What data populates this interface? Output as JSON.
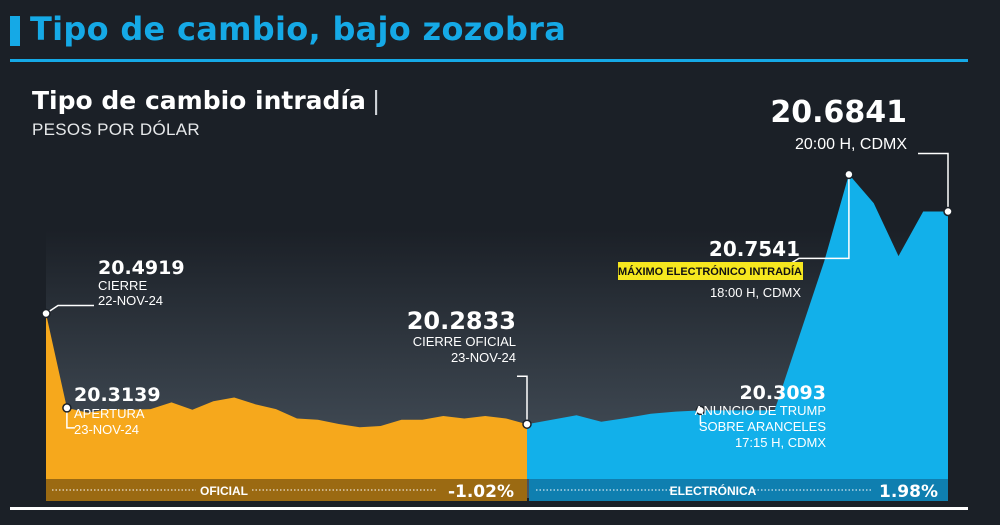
{
  "headline": "Tipo de cambio, bajo zozobra",
  "chart_title": "Tipo de cambio intradía",
  "chart_title_sep": "|",
  "chart_subtitle": "PESOS POR DÓLAR",
  "colors": {
    "accent": "#15a9e6",
    "oficial": "#f6a81c",
    "electronica": "#12b0ea",
    "highlight": "#f6e71f",
    "background": "#1b2027"
  },
  "segments": {
    "oficial": {
      "label": "OFICIAL",
      "change": "-1.02%"
    },
    "electronica": {
      "label": "ELECTRÓNICA",
      "change": "1.98%"
    }
  },
  "annotations": {
    "cierre_prev": {
      "value": "20.4919",
      "line1": "CIERRE",
      "line2": "22-NOV-24"
    },
    "apertura": {
      "value": "20.3139",
      "line1": "APERTURA",
      "line2": "23-NOV-24"
    },
    "cierre_oficial": {
      "value": "20.2833",
      "line1": "CIERRE OFICIAL",
      "line2": "23-NOV-24"
    },
    "trump": {
      "value": "20.3093",
      "line1": "ANUNCIO DE TRUMP",
      "line2": "SOBRE ARANCELES",
      "line3": "17:15 H, CDMX"
    },
    "maximo": {
      "value": "20.7541",
      "badge": "MÁXIMO ELECTRÓNICO INTRADÍA",
      "line1": "18:00 H, CDMX"
    },
    "final": {
      "value": "20.6841",
      "line1": "20:00 H, CDMX"
    }
  },
  "chart_data": {
    "type": "area",
    "ylim": [
      20.18,
      20.8
    ],
    "series": [
      {
        "name": "OFICIAL",
        "values": [
          20.4919,
          20.3139,
          20.3047,
          20.3117,
          20.3105,
          20.3117,
          20.3243,
          20.3105,
          20.3266,
          20.3335,
          20.3209,
          20.3117,
          20.2941,
          20.2917,
          20.2837,
          20.2776,
          20.2798,
          20.2917,
          20.2917,
          20.2987,
          20.2941,
          20.2987,
          20.2941,
          20.2833
        ]
      },
      {
        "name": "ELECTRÓNICA",
        "values": [
          20.2833,
          20.2918,
          20.3,
          20.288,
          20.295,
          20.303,
          20.307,
          20.3093,
          20.3093,
          20.3093,
          20.3093,
          20.45,
          20.59,
          20.7541,
          20.7,
          20.6,
          20.6841,
          20.6841
        ]
      }
    ]
  }
}
